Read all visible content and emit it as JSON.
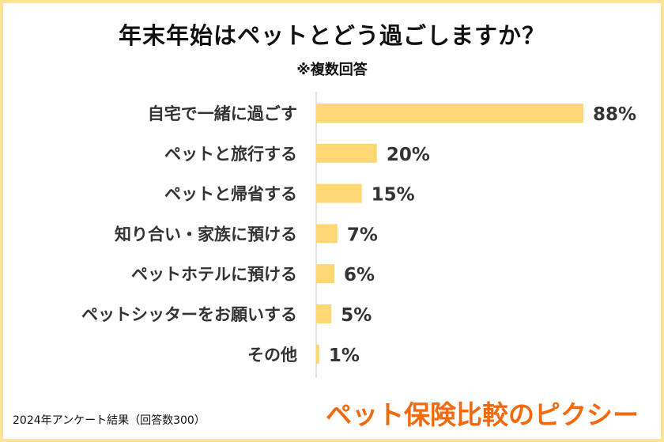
{
  "title": "年末年始はペットとどう過ごしますか？",
  "subtitle": "※複数回答",
  "footnote": "2024年アンケート結果（回答数300）",
  "brand": "ペット保険比較のピクシー",
  "colors": {
    "bar": "#fcd774",
    "border": "#fbe39a",
    "axis": "#d9d9d9",
    "brand": "#f26a10"
  },
  "chart_data": {
    "type": "bar",
    "orientation": "horizontal",
    "categories": [
      "自宅で一緒に過ごす",
      "ペットと旅行する",
      "ペットと帰省する",
      "知り合い・家族に預ける",
      "ペットホテルに預ける",
      "ペットシッターをお願いする",
      "その他"
    ],
    "values": [
      88,
      20,
      15,
      7,
      6,
      5,
      1
    ],
    "value_labels": [
      "88%",
      "20%",
      "15%",
      "7%",
      "6%",
      "5%",
      "1%"
    ],
    "unit": "%",
    "xlim": [
      0,
      88
    ]
  }
}
